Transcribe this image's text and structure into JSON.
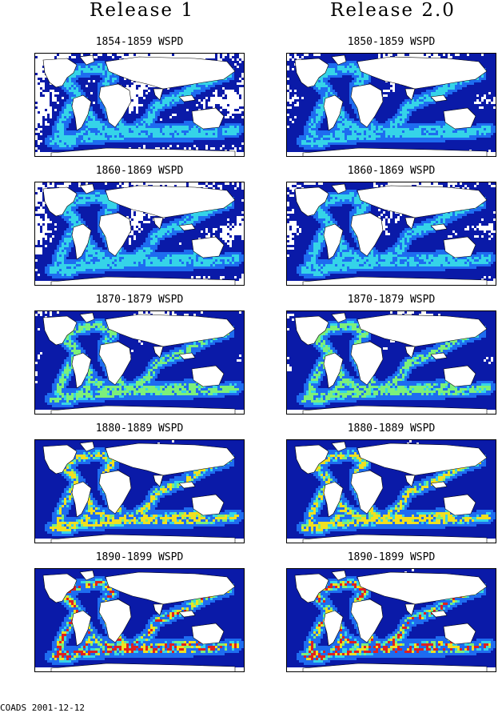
{
  "figure": {
    "columns": [
      {
        "id": "left",
        "header": "Release 1"
      },
      {
        "id": "right",
        "header": "Release 2.0"
      }
    ],
    "rows": [
      {
        "left_title": "1854-1859 WSPD",
        "right_title": "1850-1859 WSPD",
        "left_density": 0.25,
        "right_density": 0.45
      },
      {
        "left_title": "1860-1869 WSPD",
        "right_title": "1860-1869 WSPD",
        "left_density": 0.32,
        "right_density": 0.38
      },
      {
        "left_title": "1870-1879 WSPD",
        "right_title": "1870-1879 WSPD",
        "left_density": 0.55,
        "right_density": 0.58
      },
      {
        "left_title": "1880-1889 WSPD",
        "right_title": "1880-1889 WSPD",
        "left_density": 0.82,
        "right_density": 0.84
      },
      {
        "left_title": "1890-1899 WSPD",
        "right_title": "1890-1899 WSPD",
        "left_density": 0.92,
        "right_density": 0.92
      }
    ],
    "footer": "COADS 2001-12-12"
  },
  "colors": {
    "no_data": "#d9d9d9",
    "low": "#0a1aa8",
    "mid": "#1e6cf0",
    "high": "#35d4e8",
    "higher": "#7cf07a",
    "highest": "#f0e020",
    "peak": "#e02020",
    "coast": "#000000"
  }
}
